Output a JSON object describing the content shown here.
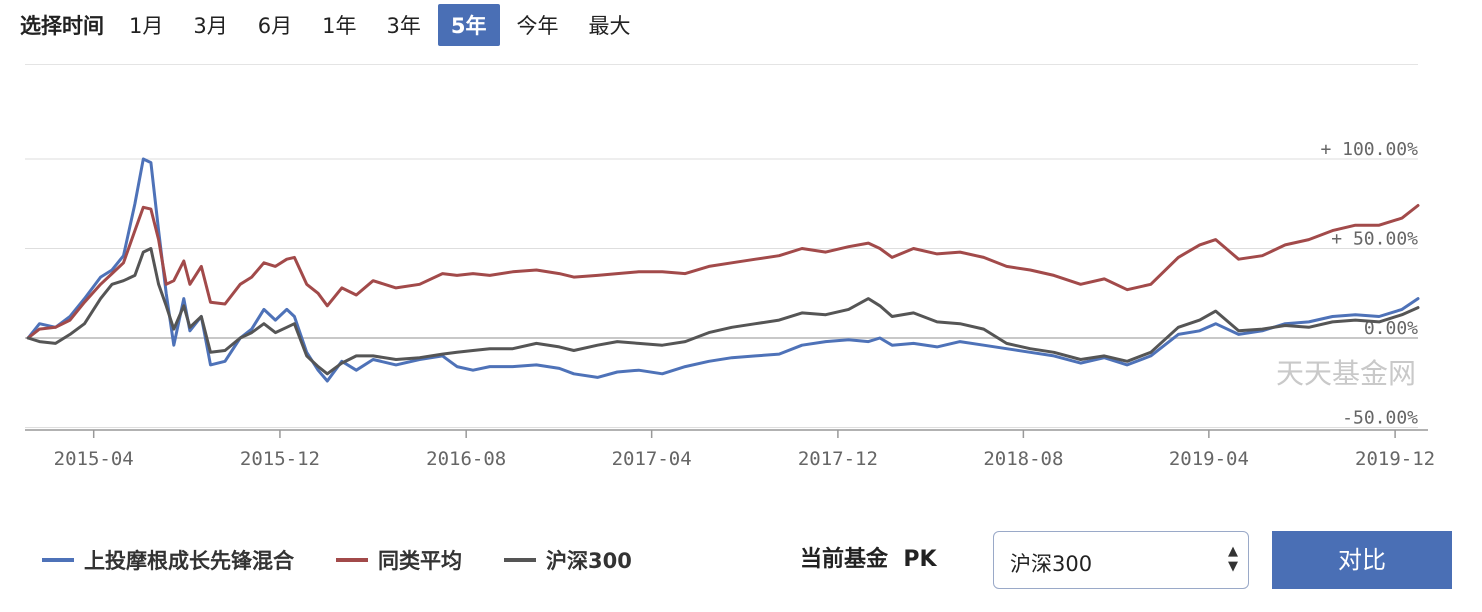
{
  "range_selector": {
    "title": "选择时间",
    "options": [
      "1月",
      "3月",
      "6月",
      "1年",
      "3年",
      "5年",
      "今年",
      "最大"
    ],
    "selected": "5年"
  },
  "watermark": "天天基金网",
  "colors": {
    "fund": "#4e72b8",
    "peer": "#a24a4a",
    "index": "#555555",
    "accent": "#4a6fb5"
  },
  "legend": [
    {
      "label": "上投摩根成长先锋混合",
      "color": "#4e72b8"
    },
    {
      "label": "同类平均",
      "color": "#a24a4a"
    },
    {
      "label": "沪深300",
      "color": "#555555"
    }
  ],
  "pk": {
    "label": "当前基金  PK",
    "select_value": "沪深300",
    "button_label": "对比"
  },
  "chart_data": {
    "type": "line",
    "y_unit": "%",
    "ylim": [
      -50,
      100
    ],
    "xlim": [
      "2015-01-01",
      "2019-12-31"
    ],
    "y_ticks": [
      {
        "value": 100,
        "label": "+ 100.00%"
      },
      {
        "value": 50,
        "label": "+ 50.00%"
      },
      {
        "value": 0,
        "label": "0.00%"
      },
      {
        "value": -50,
        "label": "-50.00%"
      }
    ],
    "x_ticks": [
      {
        "date": "2015-04-01",
        "label": "2015-04"
      },
      {
        "date": "2015-12-01",
        "label": "2015-12"
      },
      {
        "date": "2016-08-01",
        "label": "2016-08"
      },
      {
        "date": "2017-04-01",
        "label": "2017-04"
      },
      {
        "date": "2017-12-01",
        "label": "2017-12"
      },
      {
        "date": "2018-08-01",
        "label": "2018-08"
      },
      {
        "date": "2019-04-01",
        "label": "2019-04"
      },
      {
        "date": "2019-12-01",
        "label": "2019-12"
      }
    ],
    "grid": true,
    "legend_position": "bottom",
    "series": [
      {
        "name": "上投摩根成长先锋混合",
        "color": "#4e72b8",
        "points": [
          [
            "2015-01-05",
            0
          ],
          [
            "2015-01-20",
            8
          ],
          [
            "2015-02-10",
            6
          ],
          [
            "2015-03-01",
            12
          ],
          [
            "2015-03-20",
            22
          ],
          [
            "2015-04-10",
            34
          ],
          [
            "2015-04-25",
            38
          ],
          [
            "2015-05-10",
            46
          ],
          [
            "2015-05-25",
            75
          ],
          [
            "2015-06-05",
            100
          ],
          [
            "2015-06-15",
            98
          ],
          [
            "2015-06-25",
            60
          ],
          [
            "2015-07-05",
            25
          ],
          [
            "2015-07-15",
            -4
          ],
          [
            "2015-07-28",
            22
          ],
          [
            "2015-08-05",
            4
          ],
          [
            "2015-08-20",
            12
          ],
          [
            "2015-09-01",
            -15
          ],
          [
            "2015-09-20",
            -13
          ],
          [
            "2015-10-10",
            0
          ],
          [
            "2015-10-25",
            5
          ],
          [
            "2015-11-10",
            16
          ],
          [
            "2015-11-25",
            10
          ],
          [
            "2015-12-10",
            16
          ],
          [
            "2015-12-20",
            12
          ],
          [
            "2016-01-05",
            -8
          ],
          [
            "2016-01-20",
            -18
          ],
          [
            "2016-02-01",
            -24
          ],
          [
            "2016-02-20",
            -13
          ],
          [
            "2016-03-10",
            -18
          ],
          [
            "2016-04-01",
            -12
          ],
          [
            "2016-05-01",
            -15
          ],
          [
            "2016-06-01",
            -12
          ],
          [
            "2016-07-01",
            -10
          ],
          [
            "2016-07-20",
            -16
          ],
          [
            "2016-08-10",
            -18
          ],
          [
            "2016-09-01",
            -16
          ],
          [
            "2016-10-01",
            -16
          ],
          [
            "2016-11-01",
            -15
          ],
          [
            "2016-12-01",
            -17
          ],
          [
            "2016-12-20",
            -20
          ],
          [
            "2017-01-20",
            -22
          ],
          [
            "2017-02-15",
            -19
          ],
          [
            "2017-03-15",
            -18
          ],
          [
            "2017-04-15",
            -20
          ],
          [
            "2017-05-15",
            -16
          ],
          [
            "2017-06-15",
            -13
          ],
          [
            "2017-07-15",
            -11
          ],
          [
            "2017-08-15",
            -10
          ],
          [
            "2017-09-15",
            -9
          ],
          [
            "2017-10-15",
            -4
          ],
          [
            "2017-11-15",
            -2
          ],
          [
            "2017-12-15",
            -1
          ],
          [
            "2018-01-10",
            -2
          ],
          [
            "2018-01-25",
            0
          ],
          [
            "2018-02-10",
            -4
          ],
          [
            "2018-03-10",
            -3
          ],
          [
            "2018-04-10",
            -5
          ],
          [
            "2018-05-10",
            -2
          ],
          [
            "2018-06-10",
            -4
          ],
          [
            "2018-07-10",
            -6
          ],
          [
            "2018-08-10",
            -8
          ],
          [
            "2018-09-10",
            -10
          ],
          [
            "2018-10-15",
            -14
          ],
          [
            "2018-11-15",
            -11
          ],
          [
            "2018-12-15",
            -15
          ],
          [
            "2019-01-15",
            -10
          ],
          [
            "2019-02-20",
            2
          ],
          [
            "2019-03-20",
            4
          ],
          [
            "2019-04-10",
            8
          ],
          [
            "2019-05-10",
            2
          ],
          [
            "2019-06-10",
            4
          ],
          [
            "2019-07-10",
            8
          ],
          [
            "2019-08-10",
            9
          ],
          [
            "2019-09-10",
            12
          ],
          [
            "2019-10-10",
            13
          ],
          [
            "2019-11-10",
            12
          ],
          [
            "2019-12-10",
            16
          ],
          [
            "2019-12-31",
            22
          ]
        ]
      },
      {
        "name": "同类平均",
        "color": "#a24a4a",
        "points": [
          [
            "2015-01-05",
            0
          ],
          [
            "2015-01-20",
            5
          ],
          [
            "2015-02-10",
            6
          ],
          [
            "2015-03-01",
            10
          ],
          [
            "2015-03-20",
            20
          ],
          [
            "2015-04-10",
            30
          ],
          [
            "2015-04-25",
            36
          ],
          [
            "2015-05-10",
            42
          ],
          [
            "2015-05-25",
            60
          ],
          [
            "2015-06-05",
            73
          ],
          [
            "2015-06-15",
            72
          ],
          [
            "2015-06-25",
            55
          ],
          [
            "2015-07-05",
            30
          ],
          [
            "2015-07-15",
            32
          ],
          [
            "2015-07-28",
            43
          ],
          [
            "2015-08-05",
            30
          ],
          [
            "2015-08-20",
            40
          ],
          [
            "2015-09-01",
            20
          ],
          [
            "2015-09-20",
            19
          ],
          [
            "2015-10-10",
            30
          ],
          [
            "2015-10-25",
            34
          ],
          [
            "2015-11-10",
            42
          ],
          [
            "2015-11-25",
            40
          ],
          [
            "2015-12-10",
            44
          ],
          [
            "2015-12-20",
            45
          ],
          [
            "2016-01-05",
            30
          ],
          [
            "2016-01-20",
            25
          ],
          [
            "2016-02-01",
            18
          ],
          [
            "2016-02-20",
            28
          ],
          [
            "2016-03-10",
            24
          ],
          [
            "2016-04-01",
            32
          ],
          [
            "2016-05-01",
            28
          ],
          [
            "2016-06-01",
            30
          ],
          [
            "2016-07-01",
            36
          ],
          [
            "2016-07-20",
            35
          ],
          [
            "2016-08-10",
            36
          ],
          [
            "2016-09-01",
            35
          ],
          [
            "2016-10-01",
            37
          ],
          [
            "2016-11-01",
            38
          ],
          [
            "2016-12-01",
            36
          ],
          [
            "2016-12-20",
            34
          ],
          [
            "2017-01-20",
            35
          ],
          [
            "2017-02-15",
            36
          ],
          [
            "2017-03-15",
            37
          ],
          [
            "2017-04-15",
            37
          ],
          [
            "2017-05-15",
            36
          ],
          [
            "2017-06-15",
            40
          ],
          [
            "2017-07-15",
            42
          ],
          [
            "2017-08-15",
            44
          ],
          [
            "2017-09-15",
            46
          ],
          [
            "2017-10-15",
            50
          ],
          [
            "2017-11-15",
            48
          ],
          [
            "2017-12-15",
            51
          ],
          [
            "2018-01-10",
            53
          ],
          [
            "2018-01-25",
            50
          ],
          [
            "2018-02-10",
            45
          ],
          [
            "2018-03-10",
            50
          ],
          [
            "2018-04-10",
            47
          ],
          [
            "2018-05-10",
            48
          ],
          [
            "2018-06-10",
            45
          ],
          [
            "2018-07-10",
            40
          ],
          [
            "2018-08-10",
            38
          ],
          [
            "2018-09-10",
            35
          ],
          [
            "2018-10-15",
            30
          ],
          [
            "2018-11-15",
            33
          ],
          [
            "2018-12-15",
            27
          ],
          [
            "2019-01-15",
            30
          ],
          [
            "2019-02-20",
            45
          ],
          [
            "2019-03-20",
            52
          ],
          [
            "2019-04-10",
            55
          ],
          [
            "2019-05-10",
            44
          ],
          [
            "2019-06-10",
            46
          ],
          [
            "2019-07-10",
            52
          ],
          [
            "2019-08-10",
            55
          ],
          [
            "2019-09-10",
            60
          ],
          [
            "2019-10-10",
            63
          ],
          [
            "2019-11-10",
            63
          ],
          [
            "2019-12-10",
            67
          ],
          [
            "2019-12-31",
            74
          ]
        ]
      },
      {
        "name": "沪深300",
        "color": "#555555",
        "points": [
          [
            "2015-01-05",
            0
          ],
          [
            "2015-01-20",
            -2
          ],
          [
            "2015-02-10",
            -3
          ],
          [
            "2015-03-01",
            2
          ],
          [
            "2015-03-20",
            8
          ],
          [
            "2015-04-10",
            22
          ],
          [
            "2015-04-25",
            30
          ],
          [
            "2015-05-10",
            32
          ],
          [
            "2015-05-25",
            35
          ],
          [
            "2015-06-05",
            48
          ],
          [
            "2015-06-15",
            50
          ],
          [
            "2015-06-25",
            30
          ],
          [
            "2015-07-05",
            18
          ],
          [
            "2015-07-15",
            5
          ],
          [
            "2015-07-28",
            18
          ],
          [
            "2015-08-05",
            6
          ],
          [
            "2015-08-20",
            12
          ],
          [
            "2015-09-01",
            -8
          ],
          [
            "2015-09-20",
            -7
          ],
          [
            "2015-10-10",
            0
          ],
          [
            "2015-10-25",
            3
          ],
          [
            "2015-11-10",
            8
          ],
          [
            "2015-11-25",
            3
          ],
          [
            "2015-12-10",
            6
          ],
          [
            "2015-12-20",
            8
          ],
          [
            "2016-01-05",
            -10
          ],
          [
            "2016-01-20",
            -16
          ],
          [
            "2016-02-01",
            -20
          ],
          [
            "2016-02-20",
            -14
          ],
          [
            "2016-03-10",
            -10
          ],
          [
            "2016-04-01",
            -10
          ],
          [
            "2016-05-01",
            -12
          ],
          [
            "2016-06-01",
            -11
          ],
          [
            "2016-07-01",
            -9
          ],
          [
            "2016-07-20",
            -8
          ],
          [
            "2016-08-10",
            -7
          ],
          [
            "2016-09-01",
            -6
          ],
          [
            "2016-10-01",
            -6
          ],
          [
            "2016-11-01",
            -3
          ],
          [
            "2016-12-01",
            -5
          ],
          [
            "2016-12-20",
            -7
          ],
          [
            "2017-01-20",
            -4
          ],
          [
            "2017-02-15",
            -2
          ],
          [
            "2017-03-15",
            -3
          ],
          [
            "2017-04-15",
            -4
          ],
          [
            "2017-05-15",
            -2
          ],
          [
            "2017-06-15",
            3
          ],
          [
            "2017-07-15",
            6
          ],
          [
            "2017-08-15",
            8
          ],
          [
            "2017-09-15",
            10
          ],
          [
            "2017-10-15",
            14
          ],
          [
            "2017-11-15",
            13
          ],
          [
            "2017-12-15",
            16
          ],
          [
            "2018-01-10",
            22
          ],
          [
            "2018-01-25",
            18
          ],
          [
            "2018-02-10",
            12
          ],
          [
            "2018-03-10",
            14
          ],
          [
            "2018-04-10",
            9
          ],
          [
            "2018-05-10",
            8
          ],
          [
            "2018-06-10",
            5
          ],
          [
            "2018-07-10",
            -3
          ],
          [
            "2018-08-10",
            -6
          ],
          [
            "2018-09-10",
            -8
          ],
          [
            "2018-10-15",
            -12
          ],
          [
            "2018-11-15",
            -10
          ],
          [
            "2018-12-15",
            -13
          ],
          [
            "2019-01-15",
            -8
          ],
          [
            "2019-02-20",
            6
          ],
          [
            "2019-03-20",
            10
          ],
          [
            "2019-04-10",
            15
          ],
          [
            "2019-05-10",
            4
          ],
          [
            "2019-06-10",
            5
          ],
          [
            "2019-07-10",
            7
          ],
          [
            "2019-08-10",
            6
          ],
          [
            "2019-09-10",
            9
          ],
          [
            "2019-10-10",
            10
          ],
          [
            "2019-11-10",
            9
          ],
          [
            "2019-12-10",
            13
          ],
          [
            "2019-12-31",
            17
          ]
        ]
      }
    ]
  }
}
